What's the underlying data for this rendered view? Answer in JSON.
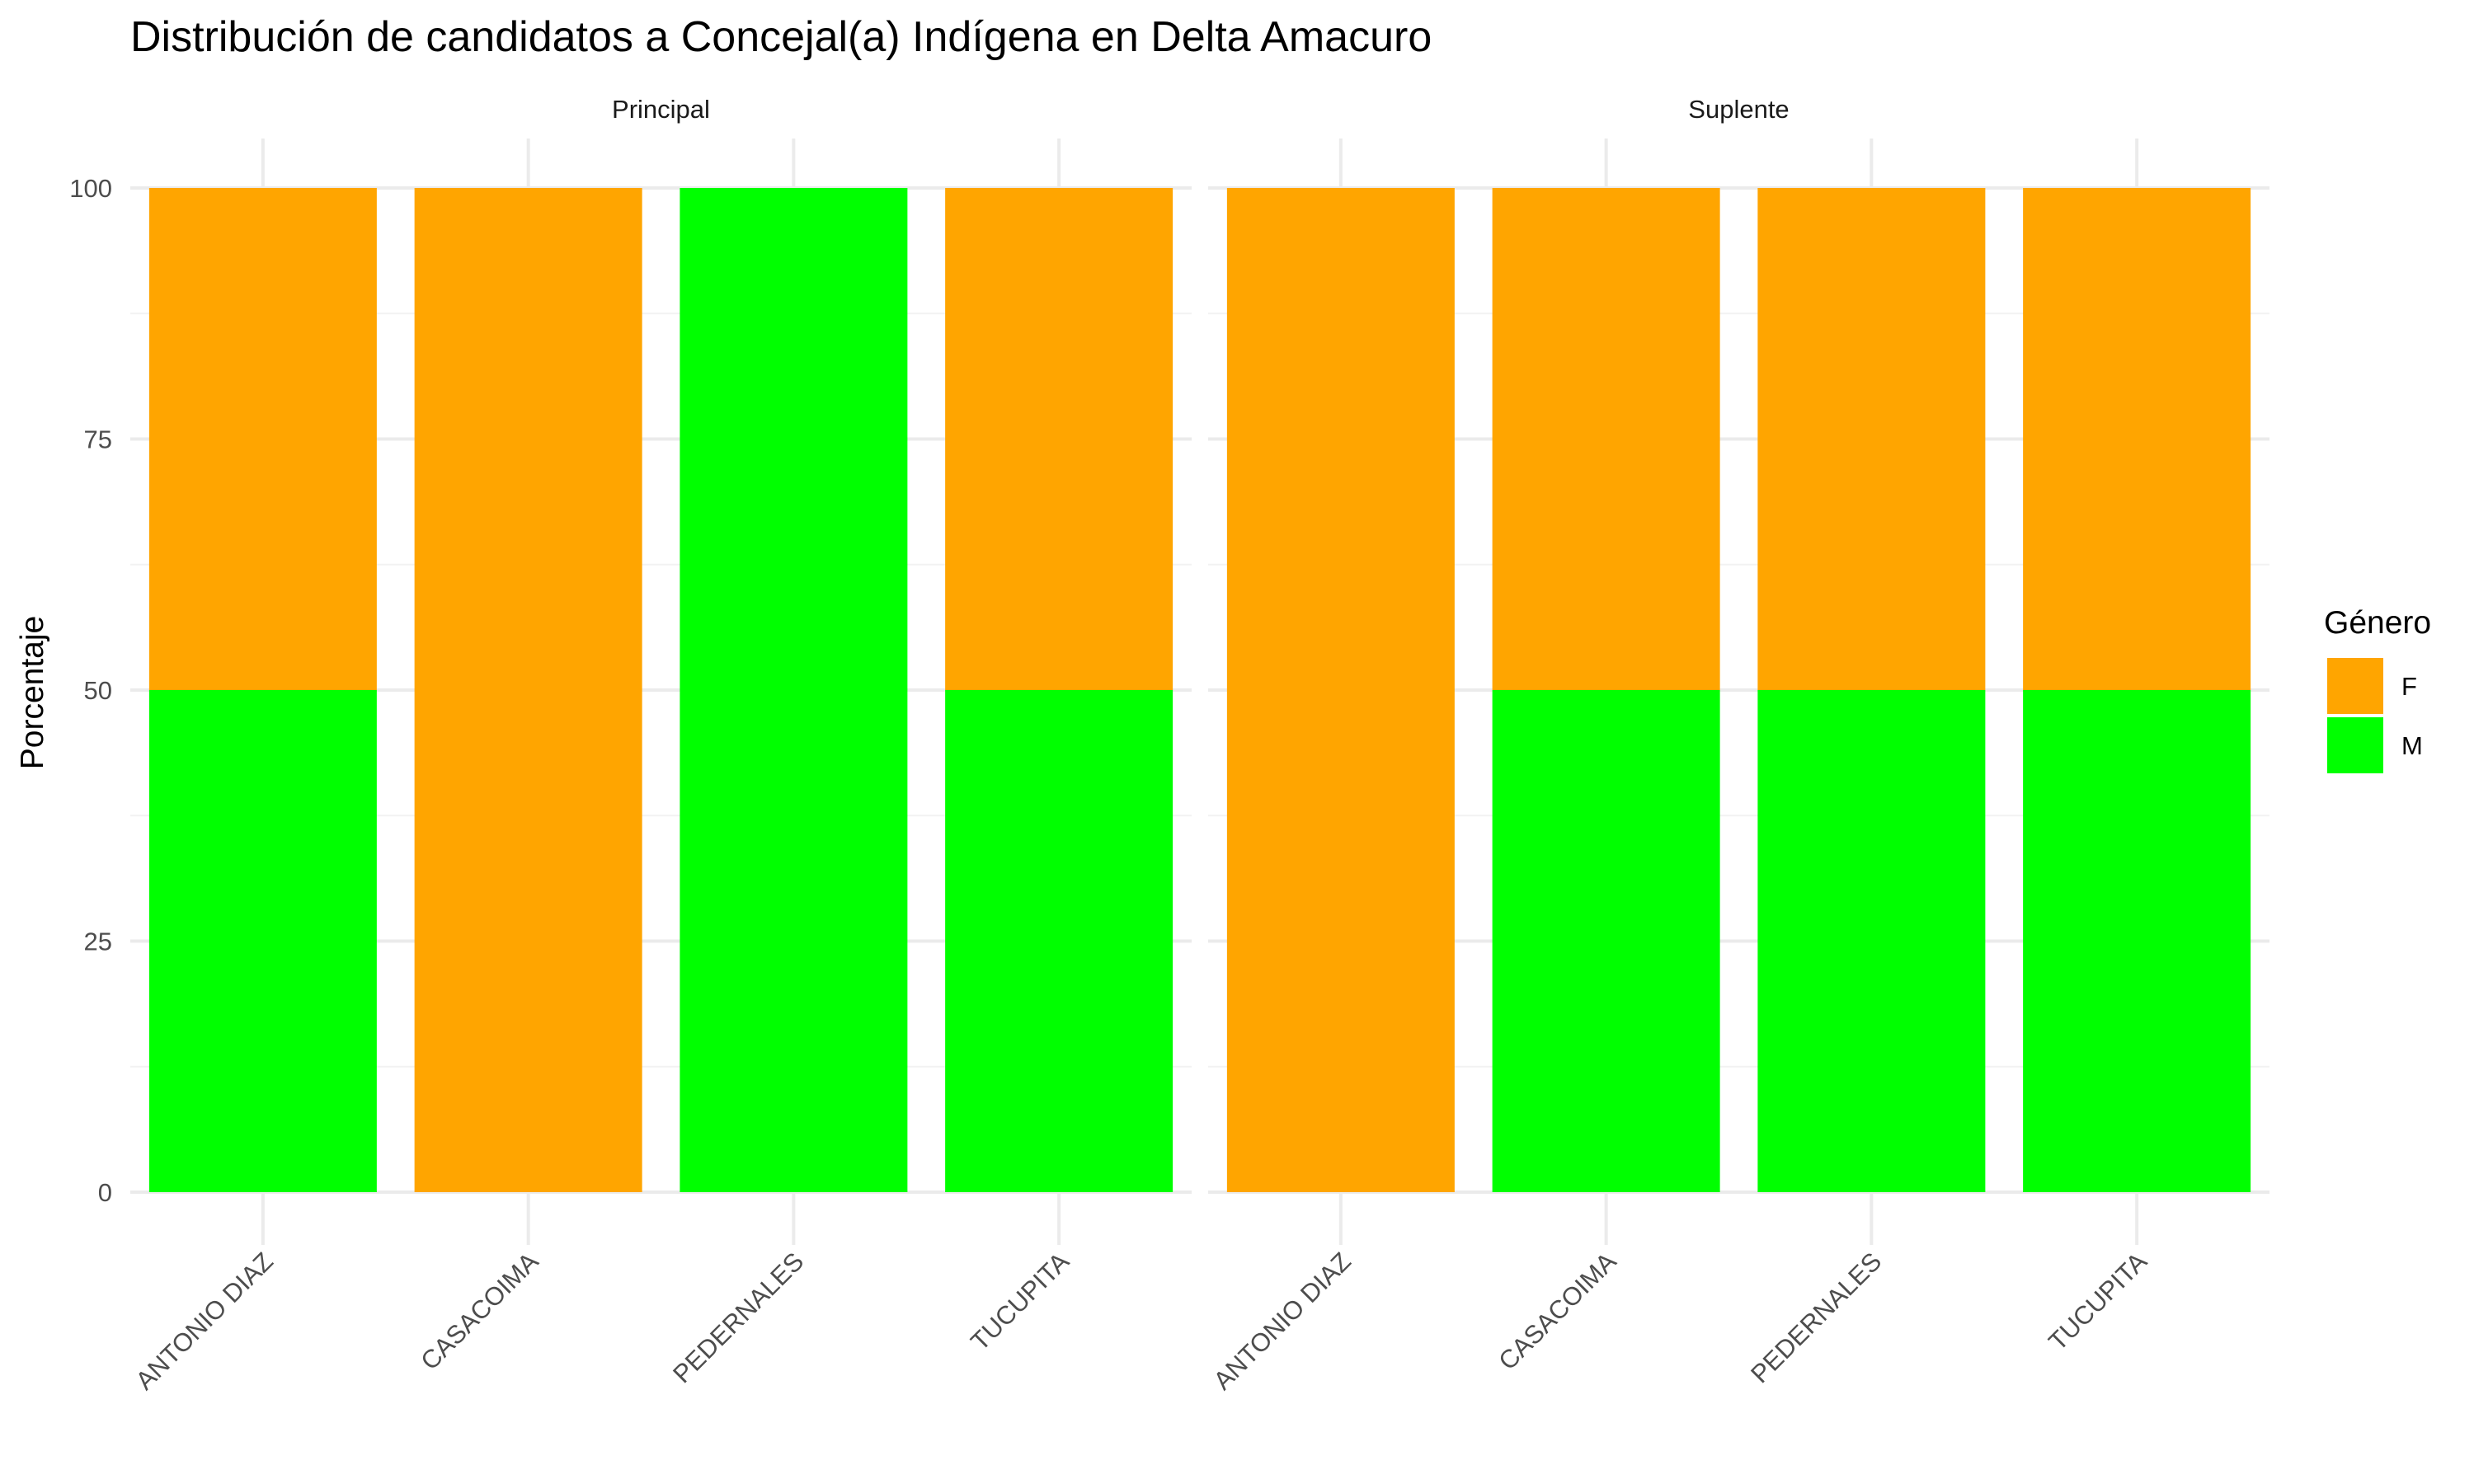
{
  "chart_data": {
    "type": "bar",
    "stacked": true,
    "title": "Distribución de candidatos a Concejal(a) Indígena en Delta Amacuro",
    "xlabel": "",
    "ylabel": "Porcentaje",
    "ylim": [
      0,
      100
    ],
    "yticks": [
      0,
      25,
      50,
      75,
      100
    ],
    "categories": [
      "ANTONIO DIAZ",
      "CASACOIMA",
      "PEDERNALES",
      "TUCUPITA"
    ],
    "facets": [
      {
        "label": "Principal",
        "series": [
          {
            "name": "M",
            "values": [
              50,
              0,
              100,
              50
            ]
          },
          {
            "name": "F",
            "values": [
              50,
              100,
              0,
              50
            ]
          }
        ]
      },
      {
        "label": "Suplente",
        "series": [
          {
            "name": "M",
            "values": [
              0,
              50,
              50,
              50
            ]
          },
          {
            "name": "F",
            "values": [
              100,
              50,
              50,
              50
            ]
          }
        ]
      }
    ],
    "legend": {
      "title": "Género",
      "position": "right",
      "items": [
        {
          "name": "F",
          "color": "#FFA500"
        },
        {
          "name": "M",
          "color": "#00FF00"
        }
      ]
    },
    "grid": true,
    "colors": {
      "F": "#FFA500",
      "M": "#00FF00"
    }
  }
}
